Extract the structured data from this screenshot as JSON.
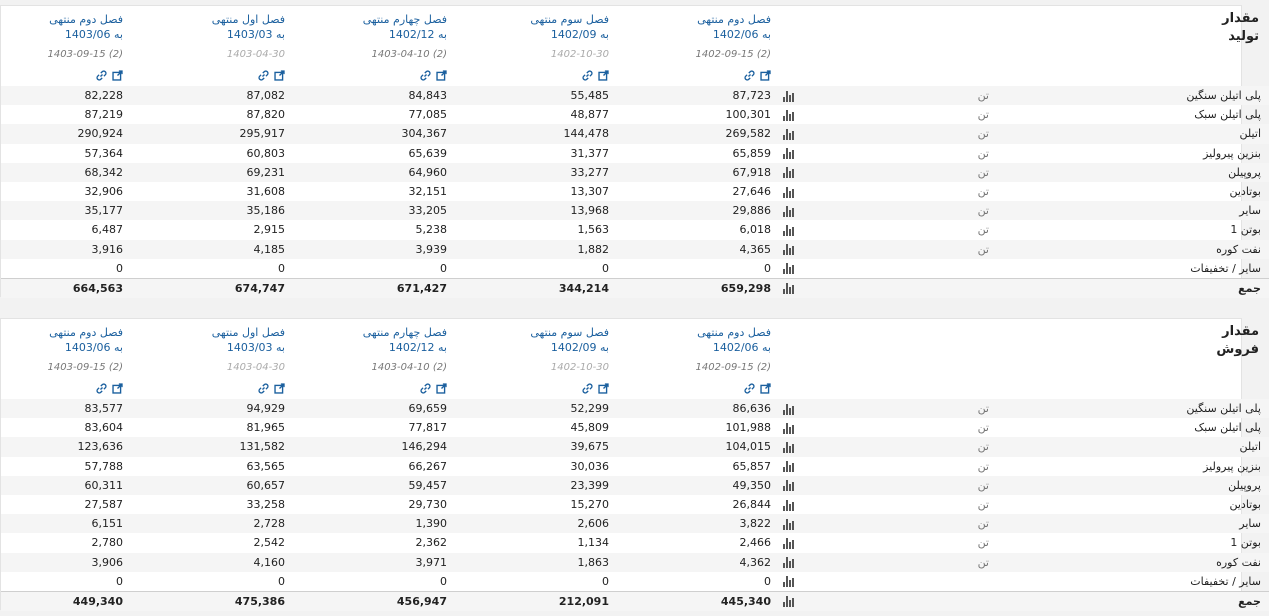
{
  "columns": [
    {
      "title": "فصل دوم منتهی",
      "period": "به 1402/06",
      "date": "1402-09-15 (2)",
      "date_light": false
    },
    {
      "title": "فصل سوم منتهی",
      "period": "به 1402/09",
      "date": "1402-10-30",
      "date_light": true
    },
    {
      "title": "فصل چهارم منتهی",
      "period": "به 1402/12",
      "date": "1403-04-10 (2)",
      "date_light": false
    },
    {
      "title": "فصل اول منتهی",
      "period": "به 1403/03",
      "date": "1403-04-30",
      "date_light": true
    },
    {
      "title": "فصل دوم منتهی",
      "period": "به 1403/06",
      "date": "1403-09-15 (2)",
      "date_light": false
    }
  ],
  "panels": [
    {
      "title_line1": "مقدار",
      "title_line2": "تولید",
      "rows": [
        {
          "label": "پلی اتیلن سنگین",
          "unit": "تن",
          "values": [
            "87,723",
            "55,485",
            "84,843",
            "87,082",
            "82,228"
          ]
        },
        {
          "label": "پلی اتیلن سبک",
          "unit": "تن",
          "values": [
            "100,301",
            "48,877",
            "77,085",
            "87,820",
            "87,219"
          ]
        },
        {
          "label": "اتیلن",
          "unit": "تن",
          "values": [
            "269,582",
            "144,478",
            "304,367",
            "295,917",
            "290,924"
          ]
        },
        {
          "label": "بنزین پیرولیز",
          "unit": "تن",
          "values": [
            "65,859",
            "31,377",
            "65,639",
            "60,803",
            "57,364"
          ]
        },
        {
          "label": "پروپیلن",
          "unit": "تن",
          "values": [
            "67,918",
            "33,277",
            "64,960",
            "69,231",
            "68,342"
          ]
        },
        {
          "label": "بوتادین",
          "unit": "تن",
          "values": [
            "27,646",
            "13,307",
            "32,151",
            "31,608",
            "32,906"
          ]
        },
        {
          "label": "سایر",
          "unit": "تن",
          "values": [
            "29,886",
            "13,968",
            "33,205",
            "35,186",
            "35,177"
          ]
        },
        {
          "label": "بوتن 1",
          "unit": "تن",
          "values": [
            "6,018",
            "1,563",
            "5,238",
            "2,915",
            "6,487"
          ]
        },
        {
          "label": "نفت کوره",
          "unit": "تن",
          "values": [
            "4,365",
            "1,882",
            "3,939",
            "4,185",
            "3,916"
          ]
        },
        {
          "label": "سایر / تخفیفات",
          "unit": "",
          "values": [
            "0",
            "0",
            "0",
            "0",
            "0"
          ]
        }
      ],
      "total": {
        "label": "جمع",
        "values": [
          "659,298",
          "344,214",
          "671,427",
          "674,747",
          "664,563"
        ]
      }
    },
    {
      "title_line1": "مقدار",
      "title_line2": "فروش",
      "rows": [
        {
          "label": "پلی اتیلن سنگین",
          "unit": "تن",
          "values": [
            "86,636",
            "52,299",
            "69,659",
            "94,929",
            "83,577"
          ]
        },
        {
          "label": "پلی اتیلن سبک",
          "unit": "تن",
          "values": [
            "101,988",
            "45,809",
            "77,817",
            "81,965",
            "83,604"
          ]
        },
        {
          "label": "اتیلن",
          "unit": "تن",
          "values": [
            "104,015",
            "39,675",
            "146,294",
            "131,582",
            "123,636"
          ]
        },
        {
          "label": "بنزین پیرولیز",
          "unit": "تن",
          "values": [
            "65,857",
            "30,036",
            "66,267",
            "63,565",
            "57,788"
          ]
        },
        {
          "label": "پروپیلن",
          "unit": "تن",
          "values": [
            "49,350",
            "23,399",
            "59,457",
            "60,657",
            "60,311"
          ]
        },
        {
          "label": "بوتادین",
          "unit": "تن",
          "values": [
            "26,844",
            "15,270",
            "29,730",
            "33,258",
            "27,587"
          ]
        },
        {
          "label": "سایر",
          "unit": "تن",
          "values": [
            "3,822",
            "2,606",
            "1,390",
            "2,728",
            "6,151"
          ]
        },
        {
          "label": "بوتن 1",
          "unit": "تن",
          "values": [
            "2,466",
            "1,134",
            "2,362",
            "2,542",
            "2,780"
          ]
        },
        {
          "label": "نفت کوره",
          "unit": "تن",
          "values": [
            "4,362",
            "1,863",
            "3,971",
            "4,160",
            "3,906"
          ]
        },
        {
          "label": "سایر / تخفیفات",
          "unit": "",
          "values": [
            "0",
            "0",
            "0",
            "0",
            "0"
          ]
        }
      ],
      "total": {
        "label": "جمع",
        "values": [
          "445,340",
          "212,091",
          "456,947",
          "475,386",
          "449,340"
        ]
      }
    }
  ],
  "icons": {
    "link": "link-icon",
    "external": "external-link-icon",
    "chart": "bar-chart-icon"
  },
  "colors": {
    "accent": "#1a5f9e",
    "muted": "#777777",
    "stripe": "#f5f5f5"
  }
}
